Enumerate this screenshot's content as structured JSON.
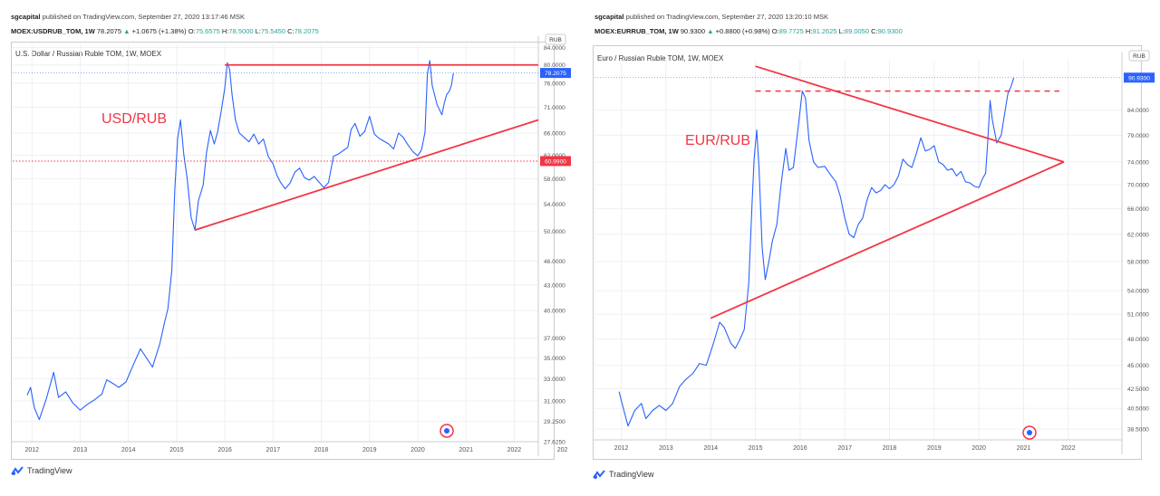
{
  "colors": {
    "series": "#2962ff",
    "trend": "#f23645",
    "bull": "#26a69a",
    "grid": "#eef0f4",
    "axis_text": "#555555"
  },
  "left": {
    "publisher": "sgcapital",
    "published_text": "published on TradingView.com, September 27, 2020 13:17:46 MSK",
    "symbol": "MOEX:USDRUB_TOM, 1W",
    "last": "78.2075",
    "change": "+1.0675 (+1.38%)",
    "o_label": "O:",
    "o": "75.6575",
    "h_label": "H:",
    "h": "78.5000",
    "l_label": "L:",
    "l": "75.5450",
    "c_label": "C:",
    "c": "78.2075",
    "chart_title": "U.S. Dollar / Russian Ruble TOM, 1W, MOEX",
    "annotation": "USD/RUB",
    "currency_badge": "RUB",
    "last_price_tag": "78.2075",
    "level_tag": "60.9900",
    "brand": "TradingView"
  },
  "right": {
    "publisher": "sgcapital",
    "published_text": "published on TradingView.com, September 27, 2020 13:20:10 MSK",
    "symbol": "MOEX:EURRUB_TOM, 1W",
    "last": "90.9300",
    "change": "+0.8800 (+0.98%)",
    "o_label": "O:",
    "o": "89.7725",
    "h_label": "H:",
    "h": "91.2625",
    "l_label": "L:",
    "l": "89.0050",
    "c_label": "C:",
    "c": "90.9300",
    "chart_title": "Euro / Russian Ruble TOM, 1W, MOEX",
    "annotation": "EUR/RUB",
    "currency_badge": "RUB",
    "last_price_tag": "90.9300",
    "brand": "TradingView"
  },
  "chart_data": [
    {
      "type": "line",
      "title": "U.S. Dollar / Russian Ruble TOM, 1W, MOEX",
      "scale": "log",
      "x_ticks": [
        "2012",
        "2013",
        "2014",
        "2015",
        "2016",
        "2017",
        "2018",
        "2019",
        "2020",
        "2021",
        "2022",
        "202"
      ],
      "y_ticks": [
        "84.0000",
        "80.0000",
        "76.0000",
        "71.0000",
        "66.0000",
        "62.0000",
        "58.0000",
        "54.0000",
        "50.0000",
        "46.0000",
        "43.0000",
        "40.0000",
        "37.0000",
        "35.0000",
        "33.0000",
        "31.0000",
        "29.2500",
        "27.6250"
      ],
      "xlim": [
        2011.6,
        2022.5
      ],
      "ylim": [
        27.625,
        85
      ],
      "series": [
        {
          "values": [
            [
              2011.9,
              31.5
            ],
            [
              2011.97,
              32.2
            ],
            [
              2012.05,
              30.4
            ],
            [
              2012.15,
              29.4
            ],
            [
              2012.3,
              31.2
            ],
            [
              2012.45,
              33.6
            ],
            [
              2012.55,
              31.3
            ],
            [
              2012.7,
              31.8
            ],
            [
              2012.85,
              30.8
            ],
            [
              2013.0,
              30.2
            ],
            [
              2013.15,
              30.7
            ],
            [
              2013.3,
              31.1
            ],
            [
              2013.45,
              31.6
            ],
            [
              2013.55,
              32.9
            ],
            [
              2013.7,
              32.5
            ],
            [
              2013.8,
              32.2
            ],
            [
              2013.95,
              32.7
            ],
            [
              2014.1,
              34.3
            ],
            [
              2014.25,
              35.9
            ],
            [
              2014.4,
              34.8
            ],
            [
              2014.5,
              34.1
            ],
            [
              2014.65,
              36.4
            ],
            [
              2014.75,
              38.7
            ],
            [
              2014.82,
              40.2
            ],
            [
              2014.9,
              44.8
            ],
            [
              2014.96,
              56.0
            ],
            [
              2015.02,
              65.0
            ],
            [
              2015.08,
              68.5
            ],
            [
              2015.15,
              62.0
            ],
            [
              2015.22,
              58.0
            ],
            [
              2015.3,
              52.0
            ],
            [
              2015.38,
              50.2
            ],
            [
              2015.45,
              54.5
            ],
            [
              2015.55,
              57.0
            ],
            [
              2015.62,
              62.5
            ],
            [
              2015.7,
              66.5
            ],
            [
              2015.78,
              64.0
            ],
            [
              2015.85,
              66.2
            ],
            [
              2015.92,
              70.0
            ],
            [
              2016.0,
              75.0
            ],
            [
              2016.05,
              80.5
            ],
            [
              2016.1,
              79.0
            ],
            [
              2016.15,
              73.5
            ],
            [
              2016.22,
              68.5
            ],
            [
              2016.3,
              66.0
            ],
            [
              2016.4,
              65.2
            ],
            [
              2016.5,
              64.4
            ],
            [
              2016.6,
              65.8
            ],
            [
              2016.7,
              64.0
            ],
            [
              2016.8,
              64.9
            ],
            [
              2016.9,
              61.8
            ],
            [
              2017.0,
              60.5
            ],
            [
              2017.08,
              58.6
            ],
            [
              2017.15,
              57.5
            ],
            [
              2017.25,
              56.4
            ],
            [
              2017.35,
              57.3
            ],
            [
              2017.45,
              59.1
            ],
            [
              2017.55,
              59.8
            ],
            [
              2017.65,
              58.2
            ],
            [
              2017.75,
              57.8
            ],
            [
              2017.85,
              58.4
            ],
            [
              2017.95,
              57.5
            ],
            [
              2018.05,
              56.6
            ],
            [
              2018.15,
              57.4
            ],
            [
              2018.25,
              61.8
            ],
            [
              2018.35,
              62.2
            ],
            [
              2018.45,
              62.8
            ],
            [
              2018.55,
              63.4
            ],
            [
              2018.62,
              66.7
            ],
            [
              2018.7,
              67.8
            ],
            [
              2018.8,
              65.4
            ],
            [
              2018.9,
              66.3
            ],
            [
              2019.0,
              69.2
            ],
            [
              2019.1,
              65.8
            ],
            [
              2019.2,
              65.0
            ],
            [
              2019.3,
              64.5
            ],
            [
              2019.4,
              64.0
            ],
            [
              2019.5,
              63.1
            ],
            [
              2019.6,
              66.0
            ],
            [
              2019.7,
              65.2
            ],
            [
              2019.8,
              63.8
            ],
            [
              2019.9,
              62.6
            ],
            [
              2020.0,
              61.9
            ],
            [
              2020.08,
              63.0
            ],
            [
              2020.15,
              66.2
            ],
            [
              2020.2,
              78.0
            ],
            [
              2020.25,
              81.0
            ],
            [
              2020.3,
              75.5
            ],
            [
              2020.4,
              71.5
            ],
            [
              2020.5,
              69.5
            ],
            [
              2020.55,
              71.8
            ],
            [
              2020.6,
              73.6
            ],
            [
              2020.65,
              74.2
            ],
            [
              2020.7,
              75.6
            ],
            [
              2020.74,
              78.2
            ]
          ]
        }
      ],
      "annotations": {
        "resistance": [
          [
            2016.0,
            80.0
          ],
          [
            2022.5,
            80.0
          ]
        ],
        "support": [
          [
            2015.38,
            50.2
          ],
          [
            2022.5,
            68.5
          ]
        ],
        "dotted_level": 60.99,
        "last_price": 78.2075
      }
    },
    {
      "type": "line",
      "title": "Euro / Russian Ruble TOM, 1W, MOEX",
      "scale": "log",
      "x_ticks": [
        "2012",
        "2013",
        "2014",
        "2015",
        "2016",
        "2017",
        "2018",
        "2019",
        "2020",
        "2021",
        "2022"
      ],
      "y_ticks": [
        "84.0000",
        "79.0000",
        "74.0000",
        "70.0000",
        "66.0000",
        "62.0000",
        "58.0000",
        "54.0000",
        "51.0000",
        "48.0000",
        "45.0000",
        "42.5000",
        "40.5000",
        "38.5000"
      ],
      "xlim": [
        2011.4,
        2023.2
      ],
      "ylim": [
        37.5,
        95
      ],
      "series": [
        {
          "values": [
            [
              2011.95,
              42.2
            ],
            [
              2012.05,
              40.4
            ],
            [
              2012.15,
              38.8
            ],
            [
              2012.3,
              40.3
            ],
            [
              2012.45,
              41.0
            ],
            [
              2012.55,
              39.5
            ],
            [
              2012.7,
              40.3
            ],
            [
              2012.85,
              40.8
            ],
            [
              2013.0,
              40.3
            ],
            [
              2013.15,
              41.0
            ],
            [
              2013.3,
              42.7
            ],
            [
              2013.45,
              43.5
            ],
            [
              2013.6,
              44.1
            ],
            [
              2013.75,
              45.2
            ],
            [
              2013.9,
              45.0
            ],
            [
              2014.05,
              47.3
            ],
            [
              2014.2,
              50.0
            ],
            [
              2014.3,
              49.4
            ],
            [
              2014.45,
              47.5
            ],
            [
              2014.55,
              46.9
            ],
            [
              2014.65,
              47.9
            ],
            [
              2014.75,
              49.1
            ],
            [
              2014.85,
              55.0
            ],
            [
              2014.92,
              66.0
            ],
            [
              2014.97,
              74.5
            ],
            [
              2015.03,
              80.0
            ],
            [
              2015.08,
              73.0
            ],
            [
              2015.15,
              60.0
            ],
            [
              2015.22,
              55.5
            ],
            [
              2015.3,
              58.0
            ],
            [
              2015.38,
              61.0
            ],
            [
              2015.48,
              63.5
            ],
            [
              2015.58,
              70.5
            ],
            [
              2015.68,
              76.5
            ],
            [
              2015.75,
              72.5
            ],
            [
              2015.85,
              73.0
            ],
            [
              2015.95,
              80.0
            ],
            [
              2016.05,
              88.0
            ],
            [
              2016.12,
              86.5
            ],
            [
              2016.2,
              78.0
            ],
            [
              2016.3,
              74.0
            ],
            [
              2016.4,
              73.0
            ],
            [
              2016.55,
              73.2
            ],
            [
              2016.7,
              71.5
            ],
            [
              2016.8,
              70.5
            ],
            [
              2016.9,
              68.0
            ],
            [
              2017.0,
              64.5
            ],
            [
              2017.1,
              62.0
            ],
            [
              2017.2,
              61.5
            ],
            [
              2017.3,
              63.5
            ],
            [
              2017.4,
              64.5
            ],
            [
              2017.5,
              67.5
            ],
            [
              2017.6,
              69.5
            ],
            [
              2017.7,
              68.6
            ],
            [
              2017.8,
              69.0
            ],
            [
              2017.9,
              70.0
            ],
            [
              2018.0,
              69.3
            ],
            [
              2018.1,
              70.0
            ],
            [
              2018.2,
              71.5
            ],
            [
              2018.3,
              74.5
            ],
            [
              2018.4,
              73.5
            ],
            [
              2018.5,
              73.0
            ],
            [
              2018.6,
              75.5
            ],
            [
              2018.7,
              78.5
            ],
            [
              2018.8,
              76.0
            ],
            [
              2018.9,
              76.3
            ],
            [
              2019.0,
              77.0
            ],
            [
              2019.1,
              74.0
            ],
            [
              2019.2,
              73.5
            ],
            [
              2019.3,
              72.5
            ],
            [
              2019.4,
              72.8
            ],
            [
              2019.5,
              71.5
            ],
            [
              2019.6,
              72.3
            ],
            [
              2019.7,
              70.5
            ],
            [
              2019.8,
              70.3
            ],
            [
              2019.9,
              69.7
            ],
            [
              2020.0,
              69.5
            ],
            [
              2020.08,
              71.0
            ],
            [
              2020.15,
              72.0
            ],
            [
              2020.2,
              78.0
            ],
            [
              2020.25,
              86.0
            ],
            [
              2020.3,
              82.0
            ],
            [
              2020.4,
              77.5
            ],
            [
              2020.5,
              79.0
            ],
            [
              2020.58,
              83.5
            ],
            [
              2020.65,
              87.5
            ],
            [
              2020.72,
              89.0
            ],
            [
              2020.78,
              90.93
            ]
          ]
        }
      ],
      "annotations": {
        "upper_trend": [
          [
            2015.0,
            93.5
          ],
          [
            2021.9,
            74.0
          ]
        ],
        "lower_trend": [
          [
            2014.0,
            50.5
          ],
          [
            2021.9,
            74.0
          ]
        ],
        "dashed_level": 88.0,
        "last_price": 90.93
      }
    }
  ]
}
